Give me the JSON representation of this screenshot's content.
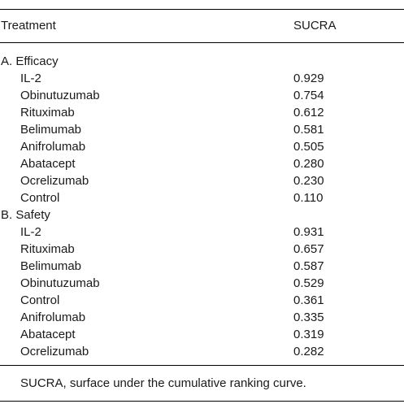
{
  "header": {
    "treatment_label": "Treatment",
    "sucra_label": "SUCRA"
  },
  "sections": [
    {
      "title": "A. Efficacy",
      "rows": [
        {
          "treatment": "IL-2",
          "sucra": "0.929"
        },
        {
          "treatment": "Obinutuzumab",
          "sucra": "0.754"
        },
        {
          "treatment": "Rituximab",
          "sucra": "0.612"
        },
        {
          "treatment": "Belimumab",
          "sucra": "0.581"
        },
        {
          "treatment": "Anifrolumab",
          "sucra": "0.505"
        },
        {
          "treatment": "Abatacept",
          "sucra": "0.280"
        },
        {
          "treatment": "Ocrelizumab",
          "sucra": "0.230"
        },
        {
          "treatment": "Control",
          "sucra": "0.110"
        }
      ]
    },
    {
      "title": "B. Safety",
      "rows": [
        {
          "treatment": "IL-2",
          "sucra": "0.931"
        },
        {
          "treatment": "Rituximab",
          "sucra": "0.657"
        },
        {
          "treatment": "Belimumab",
          "sucra": "0.587"
        },
        {
          "treatment": "Obinutuzumab",
          "sucra": "0.529"
        },
        {
          "treatment": "Control",
          "sucra": "0.361"
        },
        {
          "treatment": "Anifrolumab",
          "sucra": "0.335"
        },
        {
          "treatment": "Abatacept",
          "sucra": "0.319"
        },
        {
          "treatment": "Ocrelizumab",
          "sucra": "0.282"
        }
      ]
    }
  ],
  "footnote": "SUCRA, surface under the cumulative ranking curve."
}
